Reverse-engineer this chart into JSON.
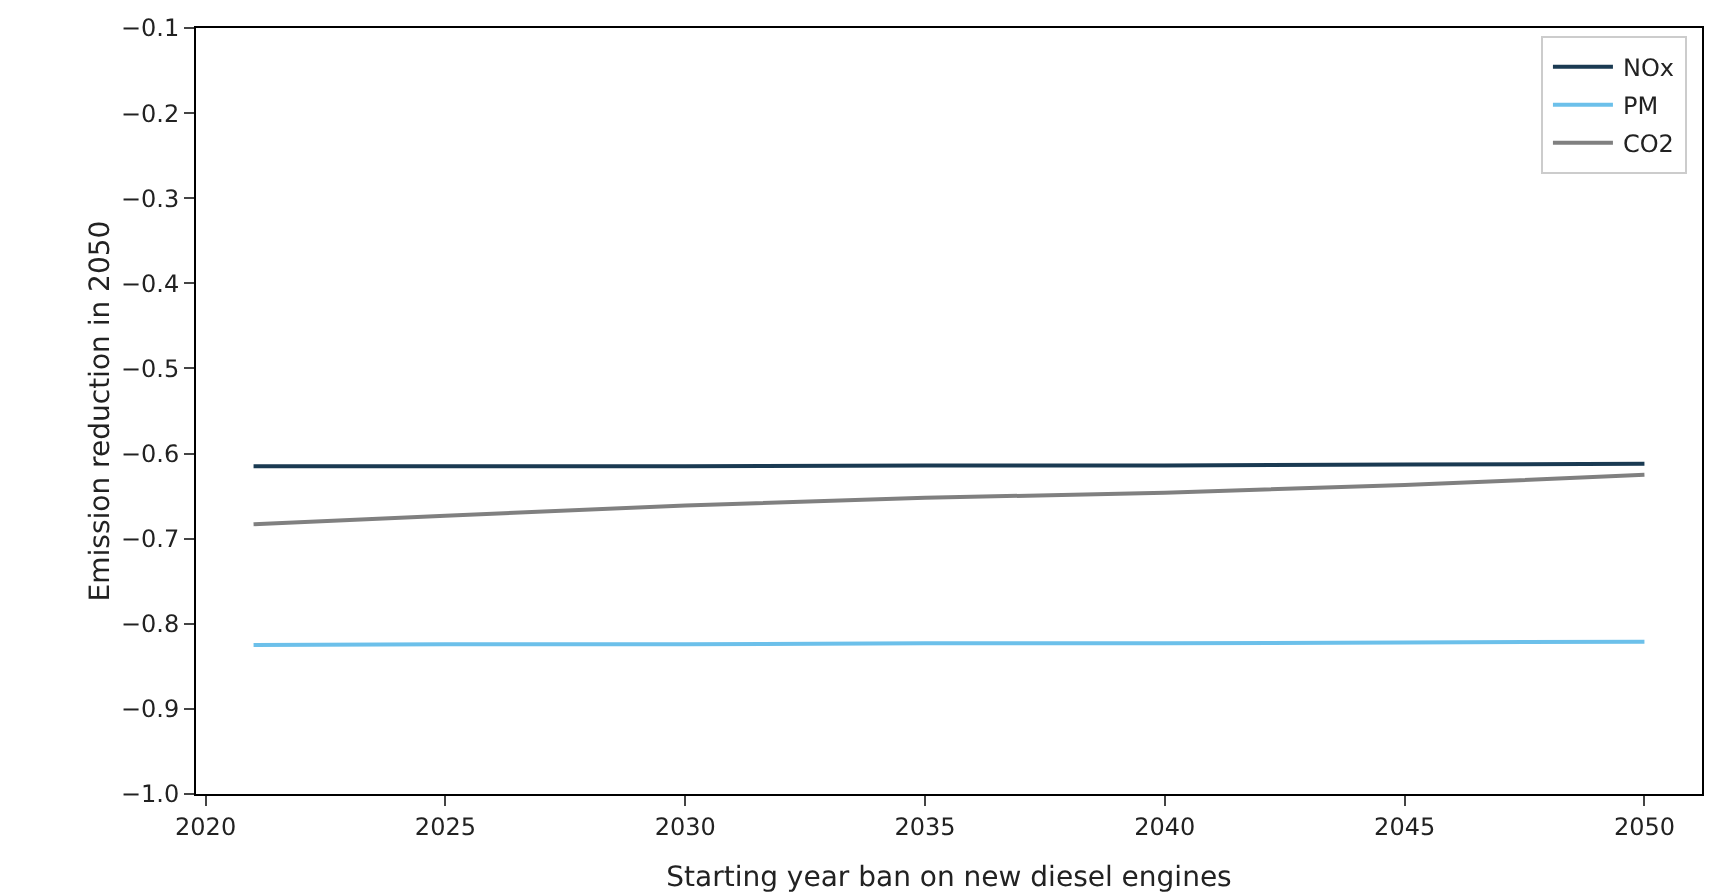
{
  "chart_data": {
    "type": "line",
    "xlabel": "Starting year ban on new diesel engines",
    "ylabel": "Emission reduction in 2050",
    "x": [
      2021,
      2025,
      2030,
      2035,
      2040,
      2045,
      2050
    ],
    "series": [
      {
        "name": "NOx",
        "color": "#1a3a52",
        "values": [
          -0.615,
          -0.615,
          -0.615,
          -0.614,
          -0.614,
          -0.613,
          -0.612
        ]
      },
      {
        "name": "PM",
        "color": "#6cc0ea",
        "values": [
          -0.825,
          -0.824,
          -0.824,
          -0.823,
          -0.823,
          -0.822,
          -0.821
        ]
      },
      {
        "name": "CO2",
        "color": "#808080",
        "values": [
          -0.683,
          -0.673,
          -0.661,
          -0.652,
          -0.646,
          -0.637,
          -0.625
        ]
      }
    ],
    "xlim": [
      2019.8,
      2051.2
    ],
    "xticks": [
      2020,
      2025,
      2030,
      2035,
      2040,
      2045,
      2050
    ],
    "ylim": [
      -1.0,
      -0.1
    ],
    "yticks": [
      {
        "value": -1.0,
        "label": "−1.0"
      },
      {
        "value": -0.9,
        "label": "−0.9"
      },
      {
        "value": -0.8,
        "label": "−0.8"
      },
      {
        "value": -0.7,
        "label": "−0.7"
      },
      {
        "value": -0.6,
        "label": "−0.6"
      },
      {
        "value": -0.5,
        "label": "−0.5"
      },
      {
        "value": -0.4,
        "label": "−0.4"
      },
      {
        "value": -0.3,
        "label": "−0.3"
      },
      {
        "value": -0.2,
        "label": "−0.2"
      },
      {
        "value": -0.1,
        "label": "−0.1"
      }
    ],
    "grid": false,
    "legend": "top right",
    "marker": "none",
    "line_style": "solid"
  }
}
